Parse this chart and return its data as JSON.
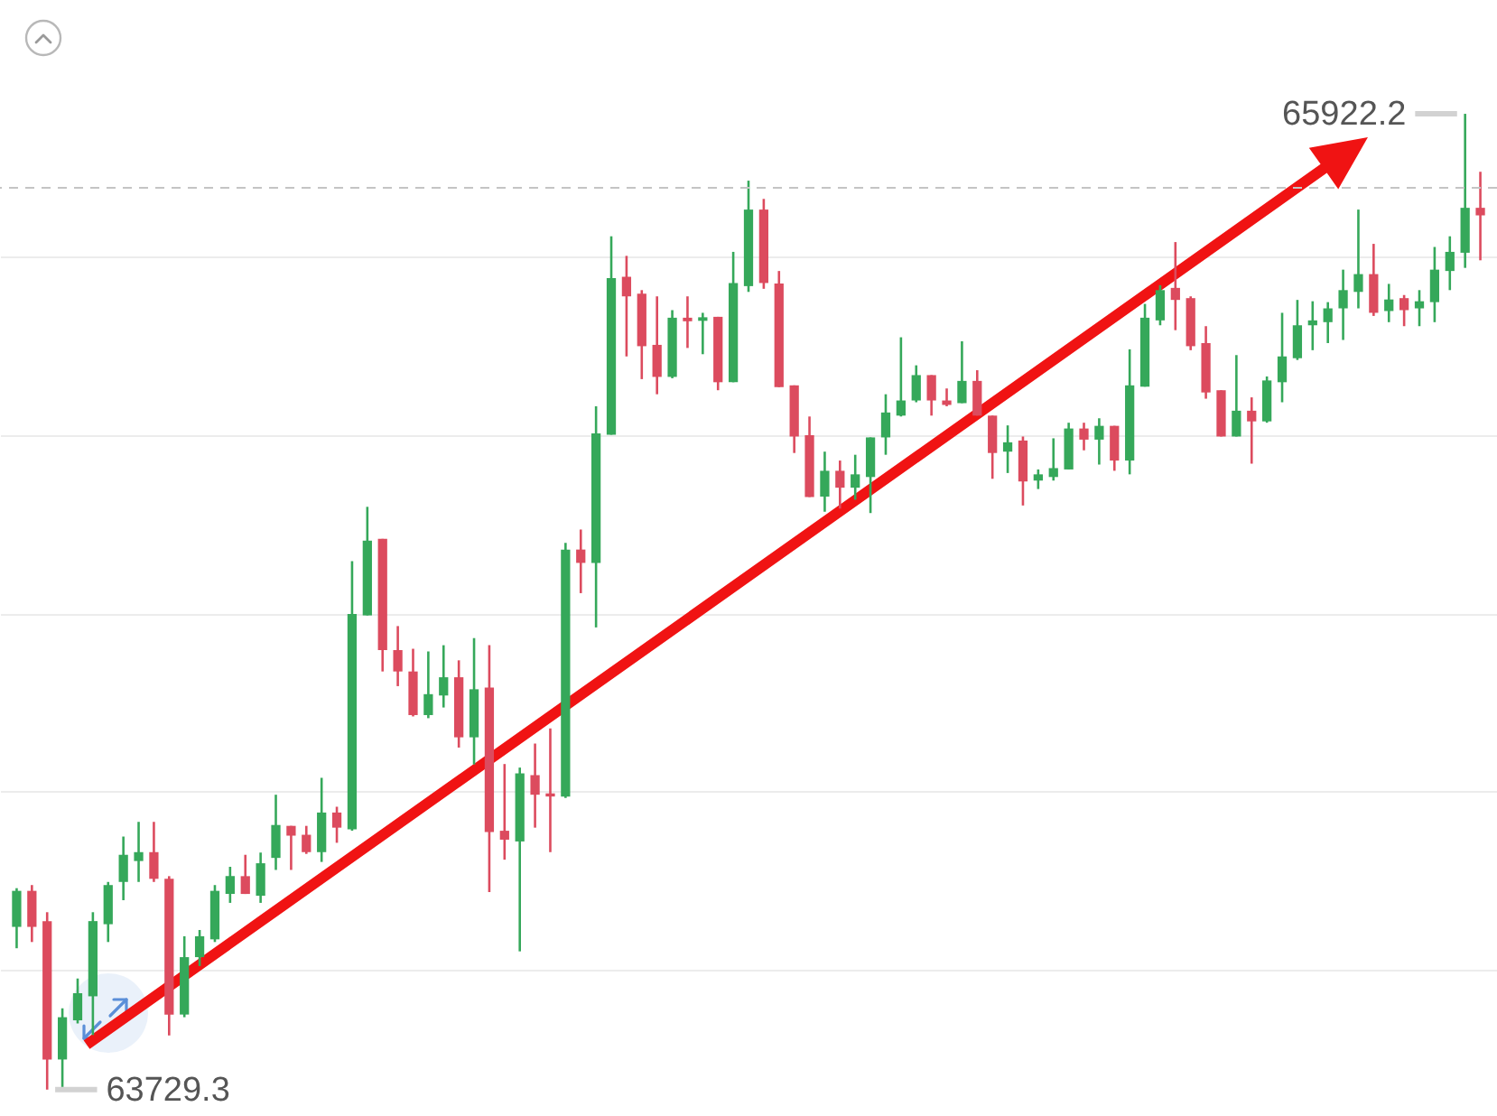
{
  "chart_data": {
    "type": "candlestick",
    "categories": [
      null,
      null,
      null,
      null,
      null,
      null,
      null,
      null,
      null,
      null,
      null,
      null,
      null,
      null,
      null,
      null,
      null,
      null,
      null,
      null,
      null,
      null,
      null,
      null,
      null,
      null,
      null,
      null,
      null,
      null,
      null,
      null,
      null,
      null,
      null,
      null,
      null,
      null,
      null,
      null,
      null,
      null,
      null,
      null,
      null,
      null,
      null,
      null,
      null,
      null,
      null,
      null,
      null,
      null,
      null,
      null,
      null,
      null,
      null,
      null,
      null,
      null,
      null,
      null,
      null,
      null,
      null,
      null,
      null,
      null,
      null,
      null,
      null,
      null,
      null,
      null,
      null,
      null,
      null,
      null,
      null,
      null,
      null,
      null,
      null,
      null,
      null,
      null,
      null,
      null,
      null,
      null,
      null,
      null,
      null,
      null,
      null
    ],
    "ohlc": [
      [
        64095,
        64182,
        64047,
        64176
      ],
      [
        64176,
        64189,
        64061,
        64095
      ],
      [
        64108,
        64128,
        63729.3,
        63797
      ],
      [
        63797,
        63912,
        63735,
        63892
      ],
      [
        63885,
        63979,
        63878,
        63946
      ],
      [
        63939,
        64128,
        63852,
        64108
      ],
      [
        64101,
        64196,
        64061,
        64189
      ],
      [
        64196,
        64298,
        64155,
        64257
      ],
      [
        64243,
        64331,
        64196,
        64263
      ],
      [
        64263,
        64331,
        64196,
        64203
      ],
      [
        64203,
        64209,
        63851,
        63898
      ],
      [
        63898,
        64074,
        63892,
        64027
      ],
      [
        64027,
        64088,
        64007,
        64074
      ],
      [
        64067,
        64189,
        64061,
        64176
      ],
      [
        64169,
        64230,
        64149,
        64209
      ],
      [
        64209,
        64257,
        64169,
        64169
      ],
      [
        64165,
        64262,
        64149,
        64238
      ],
      [
        64250,
        64392,
        64223,
        64324
      ],
      [
        64322,
        64322,
        64223,
        64300
      ],
      [
        64302,
        64322,
        64259,
        64263
      ],
      [
        64263,
        64430,
        64241,
        64352
      ],
      [
        64352,
        64365,
        64284,
        64318
      ],
      [
        64314,
        64917,
        64311,
        64798
      ],
      [
        64795,
        65039,
        64795,
        64963
      ],
      [
        64967,
        64967,
        64669,
        64717
      ],
      [
        64717,
        64771,
        64636,
        64669
      ],
      [
        64669,
        64720,
        64568,
        64571
      ],
      [
        64571,
        64714,
        64564,
        64618
      ],
      [
        64615,
        64728,
        64588,
        64656
      ],
      [
        64656,
        64694,
        64498,
        64521
      ],
      [
        64521,
        64744,
        64460,
        64629
      ],
      [
        64633,
        64728,
        64173,
        64308
      ],
      [
        64311,
        64461,
        64246,
        64291
      ],
      [
        64287,
        64453,
        64040,
        64440
      ],
      [
        64436,
        64507,
        64318,
        64392
      ],
      [
        64395,
        64541,
        64263,
        64388
      ],
      [
        64388,
        64958,
        64385,
        64943
      ],
      [
        64943,
        64988,
        64845,
        64913
      ],
      [
        64913,
        65265,
        64768,
        65204
      ],
      [
        65201,
        65647,
        65201,
        65553
      ],
      [
        65556,
        65603,
        65377,
        65512
      ],
      [
        65518,
        65526,
        65326,
        65400
      ],
      [
        65403,
        65512,
        65292,
        65331
      ],
      [
        65331,
        65481,
        65328,
        65464
      ],
      [
        65464,
        65512,
        65396,
        65456
      ],
      [
        65457,
        65475,
        65382,
        65465
      ],
      [
        65466,
        65466,
        65301,
        65319
      ],
      [
        65319,
        65612,
        65319,
        65542
      ],
      [
        65535,
        65772,
        65522,
        65707
      ],
      [
        65707,
        65731,
        65529,
        65542
      ],
      [
        65541,
        65569,
        65308,
        65308
      ],
      [
        65312,
        65312,
        65160,
        65197
      ],
      [
        65200,
        65242,
        65061,
        65061
      ],
      [
        65062,
        65163,
        65028,
        65120
      ],
      [
        65120,
        65143,
        65035,
        65082
      ],
      [
        65082,
        65156,
        65055,
        65112
      ],
      [
        65106,
        65195,
        65025,
        65195
      ],
      [
        65195,
        65292,
        65156,
        65251
      ],
      [
        65244,
        65420,
        65242,
        65278
      ],
      [
        65278,
        65357,
        65274,
        65335
      ],
      [
        65335,
        65335,
        65244,
        65278
      ],
      [
        65278,
        65305,
        65265,
        65268
      ],
      [
        65272,
        65411,
        65272,
        65322
      ],
      [
        65322,
        65346,
        65244,
        65244
      ],
      [
        65244,
        65244,
        65102,
        65160
      ],
      [
        65163,
        65222,
        65115,
        65184
      ],
      [
        65188,
        65197,
        65042,
        65096
      ],
      [
        65098,
        65123,
        65079,
        65112
      ],
      [
        65106,
        65193,
        65098,
        65126
      ],
      [
        65123,
        65228,
        65123,
        65215
      ],
      [
        65215,
        65228,
        65166,
        65190
      ],
      [
        65190,
        65238,
        65134,
        65221
      ],
      [
        65221,
        65221,
        65120,
        65143
      ],
      [
        65143,
        65393,
        65112,
        65312
      ],
      [
        65309,
        65495,
        65309,
        65464
      ],
      [
        65458,
        65537,
        65447,
        65526
      ],
      [
        65531,
        65634,
        65436,
        65504
      ],
      [
        65508,
        65512,
        65391,
        65400
      ],
      [
        65407,
        65445,
        65282,
        65296
      ],
      [
        65301,
        65301,
        65197,
        65197
      ],
      [
        65197,
        65380,
        65197,
        65255
      ],
      [
        65255,
        65285,
        65136,
        65231
      ],
      [
        65231,
        65332,
        65228,
        65323
      ],
      [
        65319,
        65475,
        65274,
        65377
      ],
      [
        65373,
        65504,
        65369,
        65447
      ],
      [
        65447,
        65501,
        65391,
        65458
      ],
      [
        65454,
        65499,
        65407,
        65485
      ],
      [
        65485,
        65572,
        65414,
        65526
      ],
      [
        65522,
        65707,
        65485,
        65562
      ],
      [
        65562,
        65630,
        65468,
        65475
      ],
      [
        65479,
        65540,
        65454,
        65505
      ],
      [
        65508,
        65515,
        65445,
        65481
      ],
      [
        65485,
        65526,
        65445,
        65501
      ],
      [
        65499,
        65623,
        65454,
        65572
      ],
      [
        65569,
        65647,
        65526,
        65612
      ],
      [
        65610,
        65922.2,
        65576,
        65711
      ],
      [
        65711,
        65792,
        65593,
        65694
      ]
    ],
    "colors": [
      "#35a85a",
      "#dc4b5e",
      "#dc4b5e",
      "#35a85a",
      "#35a85a",
      "#35a85a",
      "#35a85a",
      "#35a85a",
      "#35a85a",
      "#dc4b5e",
      "#dc4b5e",
      "#35a85a",
      "#35a85a",
      "#35a85a",
      "#35a85a",
      "#dc4b5e",
      "#35a85a",
      "#35a85a",
      "#dc4b5e",
      "#dc4b5e",
      "#35a85a",
      "#dc4b5e",
      "#35a85a",
      "#35a85a",
      "#dc4b5e",
      "#dc4b5e",
      "#dc4b5e",
      "#35a85a",
      "#35a85a",
      "#dc4b5e",
      "#35a85a",
      "#dc4b5e",
      "#dc4b5e",
      "#35a85a",
      "#dc4b5e",
      "#dc4b5e",
      "#35a85a",
      "#dc4b5e",
      "#35a85a",
      "#35a85a",
      "#dc4b5e",
      "#dc4b5e",
      "#dc4b5e",
      "#35a85a",
      "#dc4b5e",
      "#35a85a",
      "#dc4b5e",
      "#35a85a",
      "#35a85a",
      "#dc4b5e",
      "#dc4b5e",
      "#dc4b5e",
      "#dc4b5e",
      "#35a85a",
      "#dc4b5e",
      "#35a85a",
      "#35a85a",
      "#35a85a",
      "#35a85a",
      "#35a85a",
      "#dc4b5e",
      "#dc4b5e",
      "#35a85a",
      "#dc4b5e",
      "#dc4b5e",
      "#35a85a",
      "#dc4b5e",
      "#35a85a",
      "#35a85a",
      "#35a85a",
      "#dc4b5e",
      "#35a85a",
      "#dc4b5e",
      "#35a85a",
      "#35a85a",
      "#35a85a",
      "#dc4b5e",
      "#dc4b5e",
      "#dc4b5e",
      "#dc4b5e",
      "#35a85a",
      "#dc4b5e",
      "#35a85a",
      "#35a85a",
      "#35a85a",
      "#35a85a",
      "#35a85a",
      "#35a85a",
      "#35a85a",
      "#dc4b5e",
      "#35a85a",
      "#dc4b5e",
      "#35a85a",
      "#35a85a",
      "#35a85a",
      "#35a85a",
      "#dc4b5e"
    ],
    "ylim": [
      63670,
      66178
    ],
    "yticks": [
      {
        "value": 64000,
        "label": null
      },
      {
        "value": 64400,
        "label": null
      },
      {
        "value": 64800,
        "label": null
      },
      {
        "value": 65200,
        "label": null
      },
      {
        "value": 65600,
        "label": null
      }
    ],
    "grid": "y",
    "ref_lines": [
      {
        "axis": "y",
        "value": 65756,
        "color": "#c4c4c4",
        "line_style": "dashed"
      }
    ],
    "annotations": [
      "65922.2",
      "63729.3"
    ]
  }
}
